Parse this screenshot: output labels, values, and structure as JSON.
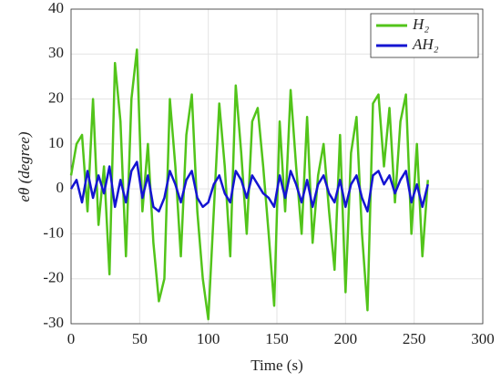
{
  "chart_data": {
    "type": "line",
    "x_label": "Time (s)",
    "y_label": "eθ (degree)",
    "x": [
      0,
      4,
      8,
      12,
      16,
      20,
      24,
      28,
      32,
      36,
      40,
      44,
      48,
      52,
      56,
      60,
      64,
      68,
      72,
      76,
      80,
      84,
      88,
      92,
      96,
      100,
      104,
      108,
      112,
      116,
      120,
      124,
      128,
      132,
      136,
      140,
      144,
      148,
      152,
      156,
      160,
      164,
      168,
      172,
      176,
      180,
      184,
      188,
      192,
      196,
      200,
      204,
      208,
      212,
      216,
      220,
      224,
      228,
      232,
      236,
      240,
      244,
      248,
      252,
      256,
      260
    ],
    "series": [
      {
        "name": "H₂",
        "color": "#52c41a",
        "values": [
          3,
          10,
          12,
          -5,
          20,
          -8,
          5,
          -19,
          28,
          15,
          -15,
          20,
          31,
          -5,
          10,
          -12,
          -25,
          -20,
          20,
          5,
          -15,
          12,
          21,
          -5,
          -20,
          -29,
          -5,
          19,
          5,
          -15,
          23,
          8,
          -10,
          15,
          18,
          5,
          -10,
          -26,
          15,
          -5,
          22,
          5,
          -10,
          16,
          -12,
          3,
          10,
          -5,
          -18,
          12,
          -23,
          8,
          16,
          -10,
          -27,
          19,
          21,
          5,
          18,
          -3,
          15,
          21,
          -10,
          10,
          -15,
          2
        ]
      },
      {
        "name": "AH₂",
        "color": "#1414d2",
        "values": [
          0,
          2,
          -3,
          4,
          -2,
          3,
          -1,
          5,
          -4,
          2,
          -3,
          4,
          6,
          -2,
          3,
          -4,
          -5,
          -2,
          4,
          1,
          -3,
          2,
          4,
          -2,
          -4,
          -3,
          1,
          3,
          -1,
          -3,
          4,
          2,
          -2,
          3,
          1,
          -1,
          -2,
          -4,
          3,
          -2,
          4,
          1,
          -3,
          2,
          -4,
          1,
          3,
          -1,
          -3,
          2,
          -4,
          1,
          3,
          -2,
          -5,
          3,
          4,
          1,
          3,
          -1,
          2,
          4,
          -3,
          1,
          -4,
          1
        ]
      }
    ],
    "xlim": [
      0,
      300
    ],
    "xticks": [
      0,
      50,
      100,
      150,
      200,
      250,
      300
    ],
    "ylim": [
      -30,
      40
    ],
    "yticks": [
      -30,
      -20,
      -10,
      0,
      10,
      20,
      30,
      40
    ],
    "grid": true,
    "legend": "top-right"
  }
}
